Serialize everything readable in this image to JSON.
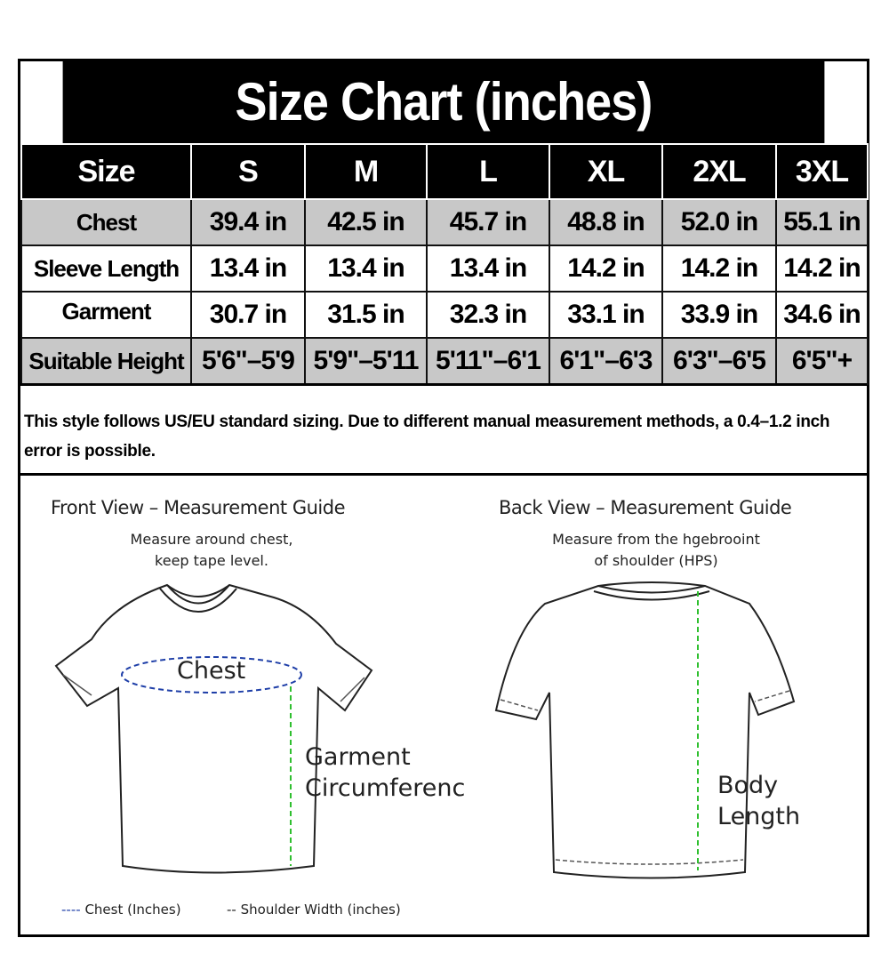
{
  "title": "Size Chart (inches)",
  "table": {
    "header": [
      "Size",
      "S",
      "M",
      "L",
      "XL",
      "2XL",
      "3XL"
    ],
    "rows": [
      {
        "label": "Chest",
        "values": [
          "39.4 in",
          "42.5 in",
          "45.7 in",
          "48.8 in",
          "52.0 in",
          "55.1 in"
        ]
      },
      {
        "label": "Sleeve Length",
        "values": [
          "13.4 in",
          "13.4 in",
          "13.4 in",
          "14.2 in",
          "14.2 in",
          "14.2 in"
        ]
      },
      {
        "label": "Garment",
        "values": [
          "30.7 in",
          "31.5 in",
          "32.3 in",
          "33.1 in",
          "33.9 in",
          "34.6 in"
        ]
      },
      {
        "label": "Suitable Height",
        "values": [
          "5'6\"–5'9",
          "5'9\"–5'11",
          "5'11\"–6'1",
          "6'1\"–6'3",
          "6'3\"–6'5",
          "6'5\"+"
        ]
      }
    ]
  },
  "note": "This style follows US/EU standard sizing. Due to different manual measurement methods, a 0.4–1.2 inch error is possible.",
  "front": {
    "title": "Front View – Measurement Guide",
    "instruction_1": "Measure around chest,",
    "instruction_2": "keep tape level.",
    "chest_label": "Chest",
    "side_label_1": "Garment",
    "side_label_2": "Circumferenc"
  },
  "back": {
    "title": "Back View – Measurement Guide",
    "instruction_1": "Measure from the hgebrooint",
    "instruction_2": "of shoulder (HPS)",
    "length_label_1": "Body",
    "length_label_2": "Length"
  },
  "legend": {
    "chest": "Chest (Inches)",
    "shoulder": "Shoulder Width (inches)"
  },
  "colors": {
    "header_bg": "#000000",
    "gray_row": "#c8c8c8",
    "chest_line": "#1f3fa8",
    "length_line": "#2fbf2f"
  }
}
